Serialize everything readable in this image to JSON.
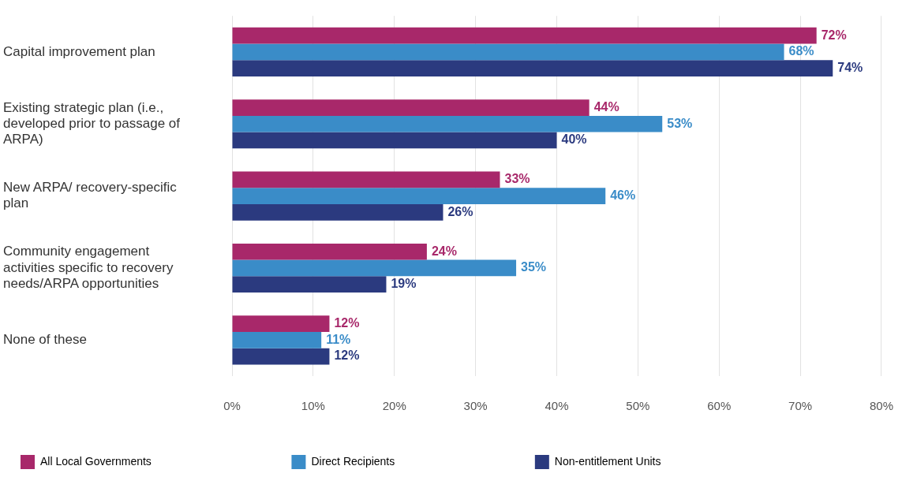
{
  "chart_data": {
    "type": "bar",
    "orientation": "horizontal",
    "categories": [
      "Capital improvement plan",
      "Existing strategic plan (i.e., developed prior to passage of ARPA)",
      "New ARPA/ recovery-specific plan",
      "Community engagement activities specific to recovery needs/ARPA opportunities",
      "None of these"
    ],
    "series": [
      {
        "name": "All Local Governments",
        "color": "#a8286a",
        "values": [
          72,
          44,
          33,
          24,
          12
        ],
        "value_labels": [
          "72%",
          "44%",
          "33%",
          "24%",
          "12%"
        ]
      },
      {
        "name": "Direct Recipients",
        "color": "#3a8cc8",
        "values": [
          68,
          53,
          46,
          35,
          11
        ],
        "value_labels": [
          "68%",
          "53%",
          "46%",
          "35%",
          "11%"
        ]
      },
      {
        "name": "Non-entitlement Units",
        "color": "#2b3a7f",
        "values": [
          74,
          40,
          26,
          19,
          12
        ],
        "value_labels": [
          "74%",
          "40%",
          "26%",
          "19%",
          "12%"
        ]
      }
    ],
    "xlim": [
      0,
      80
    ],
    "xticks": [
      {
        "value": 0,
        "label": "0%"
      },
      {
        "value": 10,
        "label": "10%"
      },
      {
        "value": 20,
        "label": "20%"
      },
      {
        "value": 30,
        "label": "30%"
      },
      {
        "value": 40,
        "label": "40%"
      },
      {
        "value": 50,
        "label": "50%"
      },
      {
        "value": 60,
        "label": "60%"
      },
      {
        "value": 70,
        "label": "70%"
      },
      {
        "value": 80,
        "label": "80%"
      }
    ],
    "grid": "x",
    "legend": "bottom"
  }
}
